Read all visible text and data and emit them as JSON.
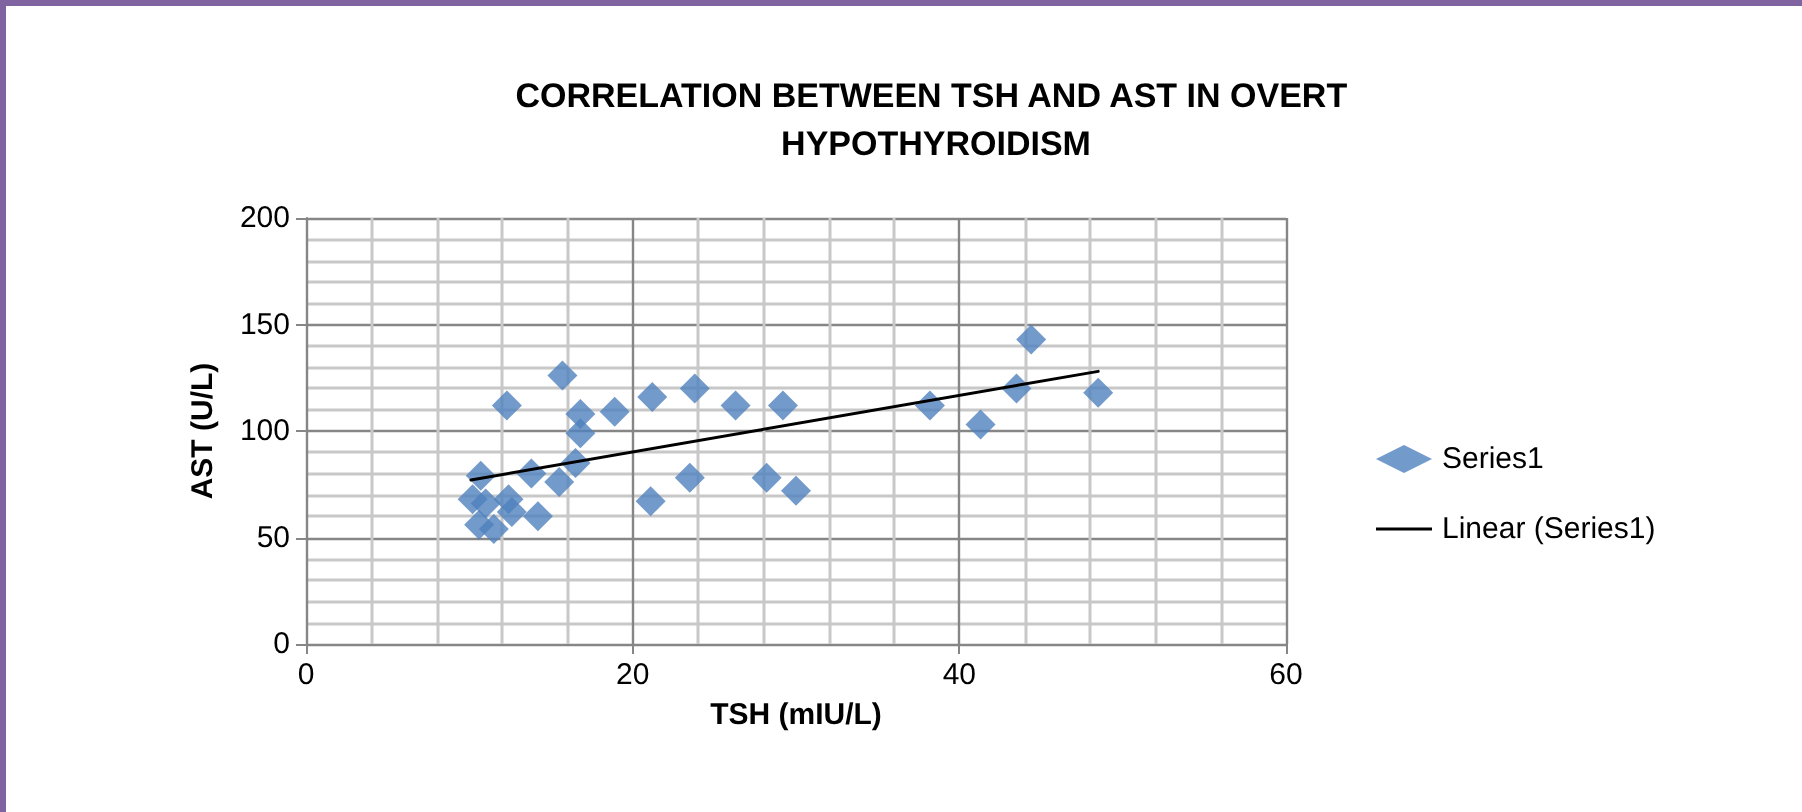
{
  "chart_data": {
    "type": "scatter",
    "title": "CORRELATION BETWEEN TSH AND AST IN OVERT HYPOTHYROIDISM",
    "xlabel": "TSH (mIU/L)",
    "ylabel": "AST (U/L)",
    "xlim": [
      0,
      60
    ],
    "xticks": [
      0,
      20,
      40,
      60
    ],
    "ylim": [
      0,
      200
    ],
    "yticks": [
      0,
      50,
      100,
      150,
      200
    ],
    "grid": true,
    "legend": "right",
    "marker": "diamond",
    "series": [
      {
        "name": "Series1",
        "color": "#4f81bd",
        "x": [
          12.3,
          15.7,
          18.9,
          21.2,
          23.8,
          26.3,
          29.2,
          21.1,
          23.5,
          28.2,
          30.0,
          38.2,
          41.3,
          43.5,
          44.4,
          48.5,
          10.7,
          10.2,
          10.6,
          11.5,
          12.6,
          12.4,
          13.8,
          15.5,
          16.5,
          16.8,
          16.8,
          11.0,
          14.2
        ],
        "values": [
          112,
          126,
          109,
          116,
          120,
          112,
          112,
          67,
          78,
          78,
          72,
          112,
          103,
          120,
          143,
          118,
          79,
          68,
          56,
          54,
          62,
          68,
          80,
          76,
          85,
          99,
          108,
          66,
          60
        ]
      },
      {
        "name": "Linear (Series1)",
        "type": "line",
        "color": "#000000",
        "marker": "none",
        "x": [
          10.1,
          48.5
        ],
        "values": [
          77,
          128
        ]
      }
    ]
  }
}
